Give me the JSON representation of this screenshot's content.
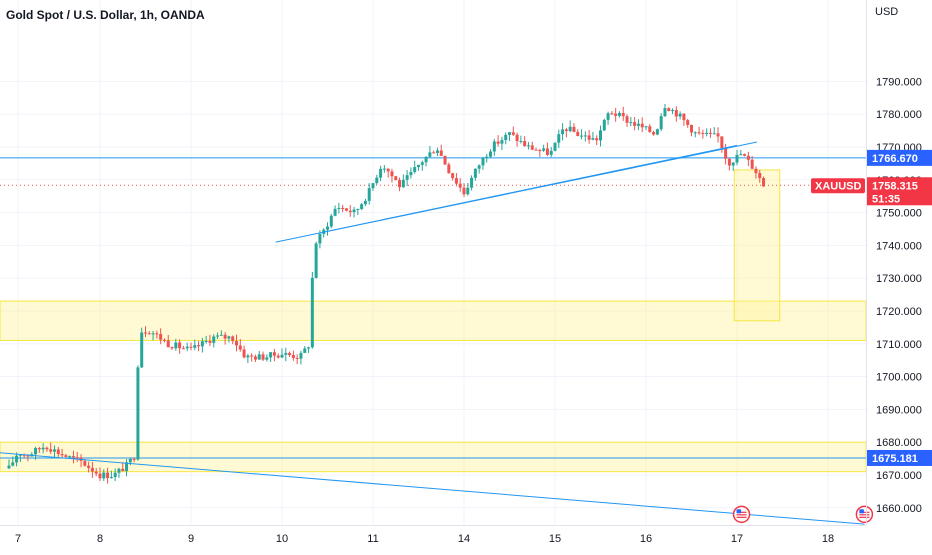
{
  "header": {
    "symbol_title": "Gold Spot / U.S. Dollar, 1h, OANDA"
  },
  "colors": {
    "up": "#26a69a",
    "down": "#ef5350",
    "trendline": "#2196f3",
    "zone_fill": "#fff59d",
    "zone_border": "#f5e642",
    "level_line": "#2196f3",
    "price_line": "#ef5350",
    "grid": "#f0f3fa",
    "level_label_bg": "#2962ff",
    "symbol_label_bg": "#f23645"
  },
  "chart_data": {
    "type": "candlestick",
    "currency_label": "USD",
    "ylim": [
      1653,
      1797
    ],
    "y_ticks": [
      "1660.000",
      "1670.000",
      "1680.000",
      "1690.000",
      "1700.000",
      "1710.000",
      "1720.000",
      "1730.000",
      "1740.000",
      "1750.000",
      "1760.000",
      "1770.000",
      "1780.000",
      "1790.000"
    ],
    "x_ticks": [
      {
        "label": "7",
        "x": 0.1
      },
      {
        "label": "8",
        "x": 1
      },
      {
        "label": "9",
        "x": 2
      },
      {
        "label": "10",
        "x": 3
      },
      {
        "label": "11",
        "x": 4
      },
      {
        "label": "14",
        "x": 5
      },
      {
        "label": "15",
        "x": 6
      },
      {
        "label": "16",
        "x": 7
      },
      {
        "label": "17",
        "x": 8
      },
      {
        "label": "18",
        "x": 9
      }
    ],
    "waypoints": [
      {
        "x": 0.0,
        "p": 1672
      },
      {
        "x": 0.1,
        "p": 1677
      },
      {
        "x": 0.2,
        "p": 1676
      },
      {
        "x": 0.4,
        "p": 1679
      },
      {
        "x": 0.6,
        "p": 1676
      },
      {
        "x": 0.8,
        "p": 1674
      },
      {
        "x": 1.0,
        "p": 1670
      },
      {
        "x": 1.15,
        "p": 1670
      },
      {
        "x": 1.3,
        "p": 1673
      },
      {
        "x": 1.38,
        "p": 1676
      },
      {
        "x": 1.43,
        "p": 1714
      },
      {
        "x": 1.55,
        "p": 1714
      },
      {
        "x": 1.75,
        "p": 1710
      },
      {
        "x": 2.0,
        "p": 1708
      },
      {
        "x": 2.25,
        "p": 1712
      },
      {
        "x": 2.45,
        "p": 1712
      },
      {
        "x": 2.6,
        "p": 1706
      },
      {
        "x": 2.8,
        "p": 1706
      },
      {
        "x": 3.0,
        "p": 1707
      },
      {
        "x": 3.2,
        "p": 1706
      },
      {
        "x": 3.3,
        "p": 1710
      },
      {
        "x": 3.35,
        "p": 1740
      },
      {
        "x": 3.45,
        "p": 1744
      },
      {
        "x": 3.6,
        "p": 1752
      },
      {
        "x": 3.8,
        "p": 1750
      },
      {
        "x": 3.95,
        "p": 1756
      },
      {
        "x": 4.1,
        "p": 1765
      },
      {
        "x": 4.3,
        "p": 1758
      },
      {
        "x": 4.55,
        "p": 1766
      },
      {
        "x": 4.7,
        "p": 1770
      },
      {
        "x": 4.85,
        "p": 1762
      },
      {
        "x": 5.0,
        "p": 1756
      },
      {
        "x": 5.15,
        "p": 1764
      },
      {
        "x": 5.3,
        "p": 1770
      },
      {
        "x": 5.5,
        "p": 1774
      },
      {
        "x": 5.7,
        "p": 1770
      },
      {
        "x": 5.95,
        "p": 1768
      },
      {
        "x": 6.1,
        "p": 1776
      },
      {
        "x": 6.25,
        "p": 1774
      },
      {
        "x": 6.45,
        "p": 1772
      },
      {
        "x": 6.6,
        "p": 1781
      },
      {
        "x": 6.8,
        "p": 1778
      },
      {
        "x": 6.95,
        "p": 1776
      },
      {
        "x": 7.1,
        "p": 1774
      },
      {
        "x": 7.2,
        "p": 1783
      },
      {
        "x": 7.35,
        "p": 1780
      },
      {
        "x": 7.55,
        "p": 1774
      },
      {
        "x": 7.8,
        "p": 1773
      },
      {
        "x": 7.9,
        "p": 1765
      },
      {
        "x": 8.05,
        "p": 1768
      },
      {
        "x": 8.2,
        "p": 1763
      },
      {
        "x": 8.3,
        "p": 1758
      }
    ],
    "zones": [
      {
        "name": "resistance-support-zone-upper",
        "x0": -0.2,
        "x1": 9.6,
        "y0": 1711,
        "y1": 1723
      },
      {
        "name": "support-zone-lower",
        "x0": -0.2,
        "x1": 9.6,
        "y0": 1671,
        "y1": 1680
      },
      {
        "name": "target-box",
        "x0": 7.97,
        "x1": 8.47,
        "y0": 1717,
        "y1": 1763
      }
    ],
    "trendlines": [
      {
        "name": "rising-trendline-a",
        "x0": 2.93,
        "y0": 1741,
        "x1": 8.22,
        "y1": 1771.5
      },
      {
        "name": "rising-trendline-b",
        "x0": 3.45,
        "y0": 1744,
        "x1": 8.0,
        "y1": 1770.5
      },
      {
        "name": "falling-trendline",
        "x0": -0.2,
        "y0": 1677,
        "x1": 9.4,
        "y1": 1655
      }
    ],
    "horizontal_levels": [
      {
        "name": "resistance-level",
        "price": 1766.67,
        "label": "1766.670"
      },
      {
        "name": "support-level",
        "price": 1675.181,
        "label": "1675.181"
      }
    ],
    "current_price": {
      "price": 1758.315,
      "symbol": "XAUUSD",
      "label": "1758.315",
      "countdown": "51:35"
    },
    "event_markers": [
      {
        "name": "us-flag-event-marker-1",
        "x": 8.05,
        "p": 1658
      },
      {
        "name": "us-flag-event-marker-2",
        "x": 9.4,
        "p": 1658
      }
    ]
  }
}
